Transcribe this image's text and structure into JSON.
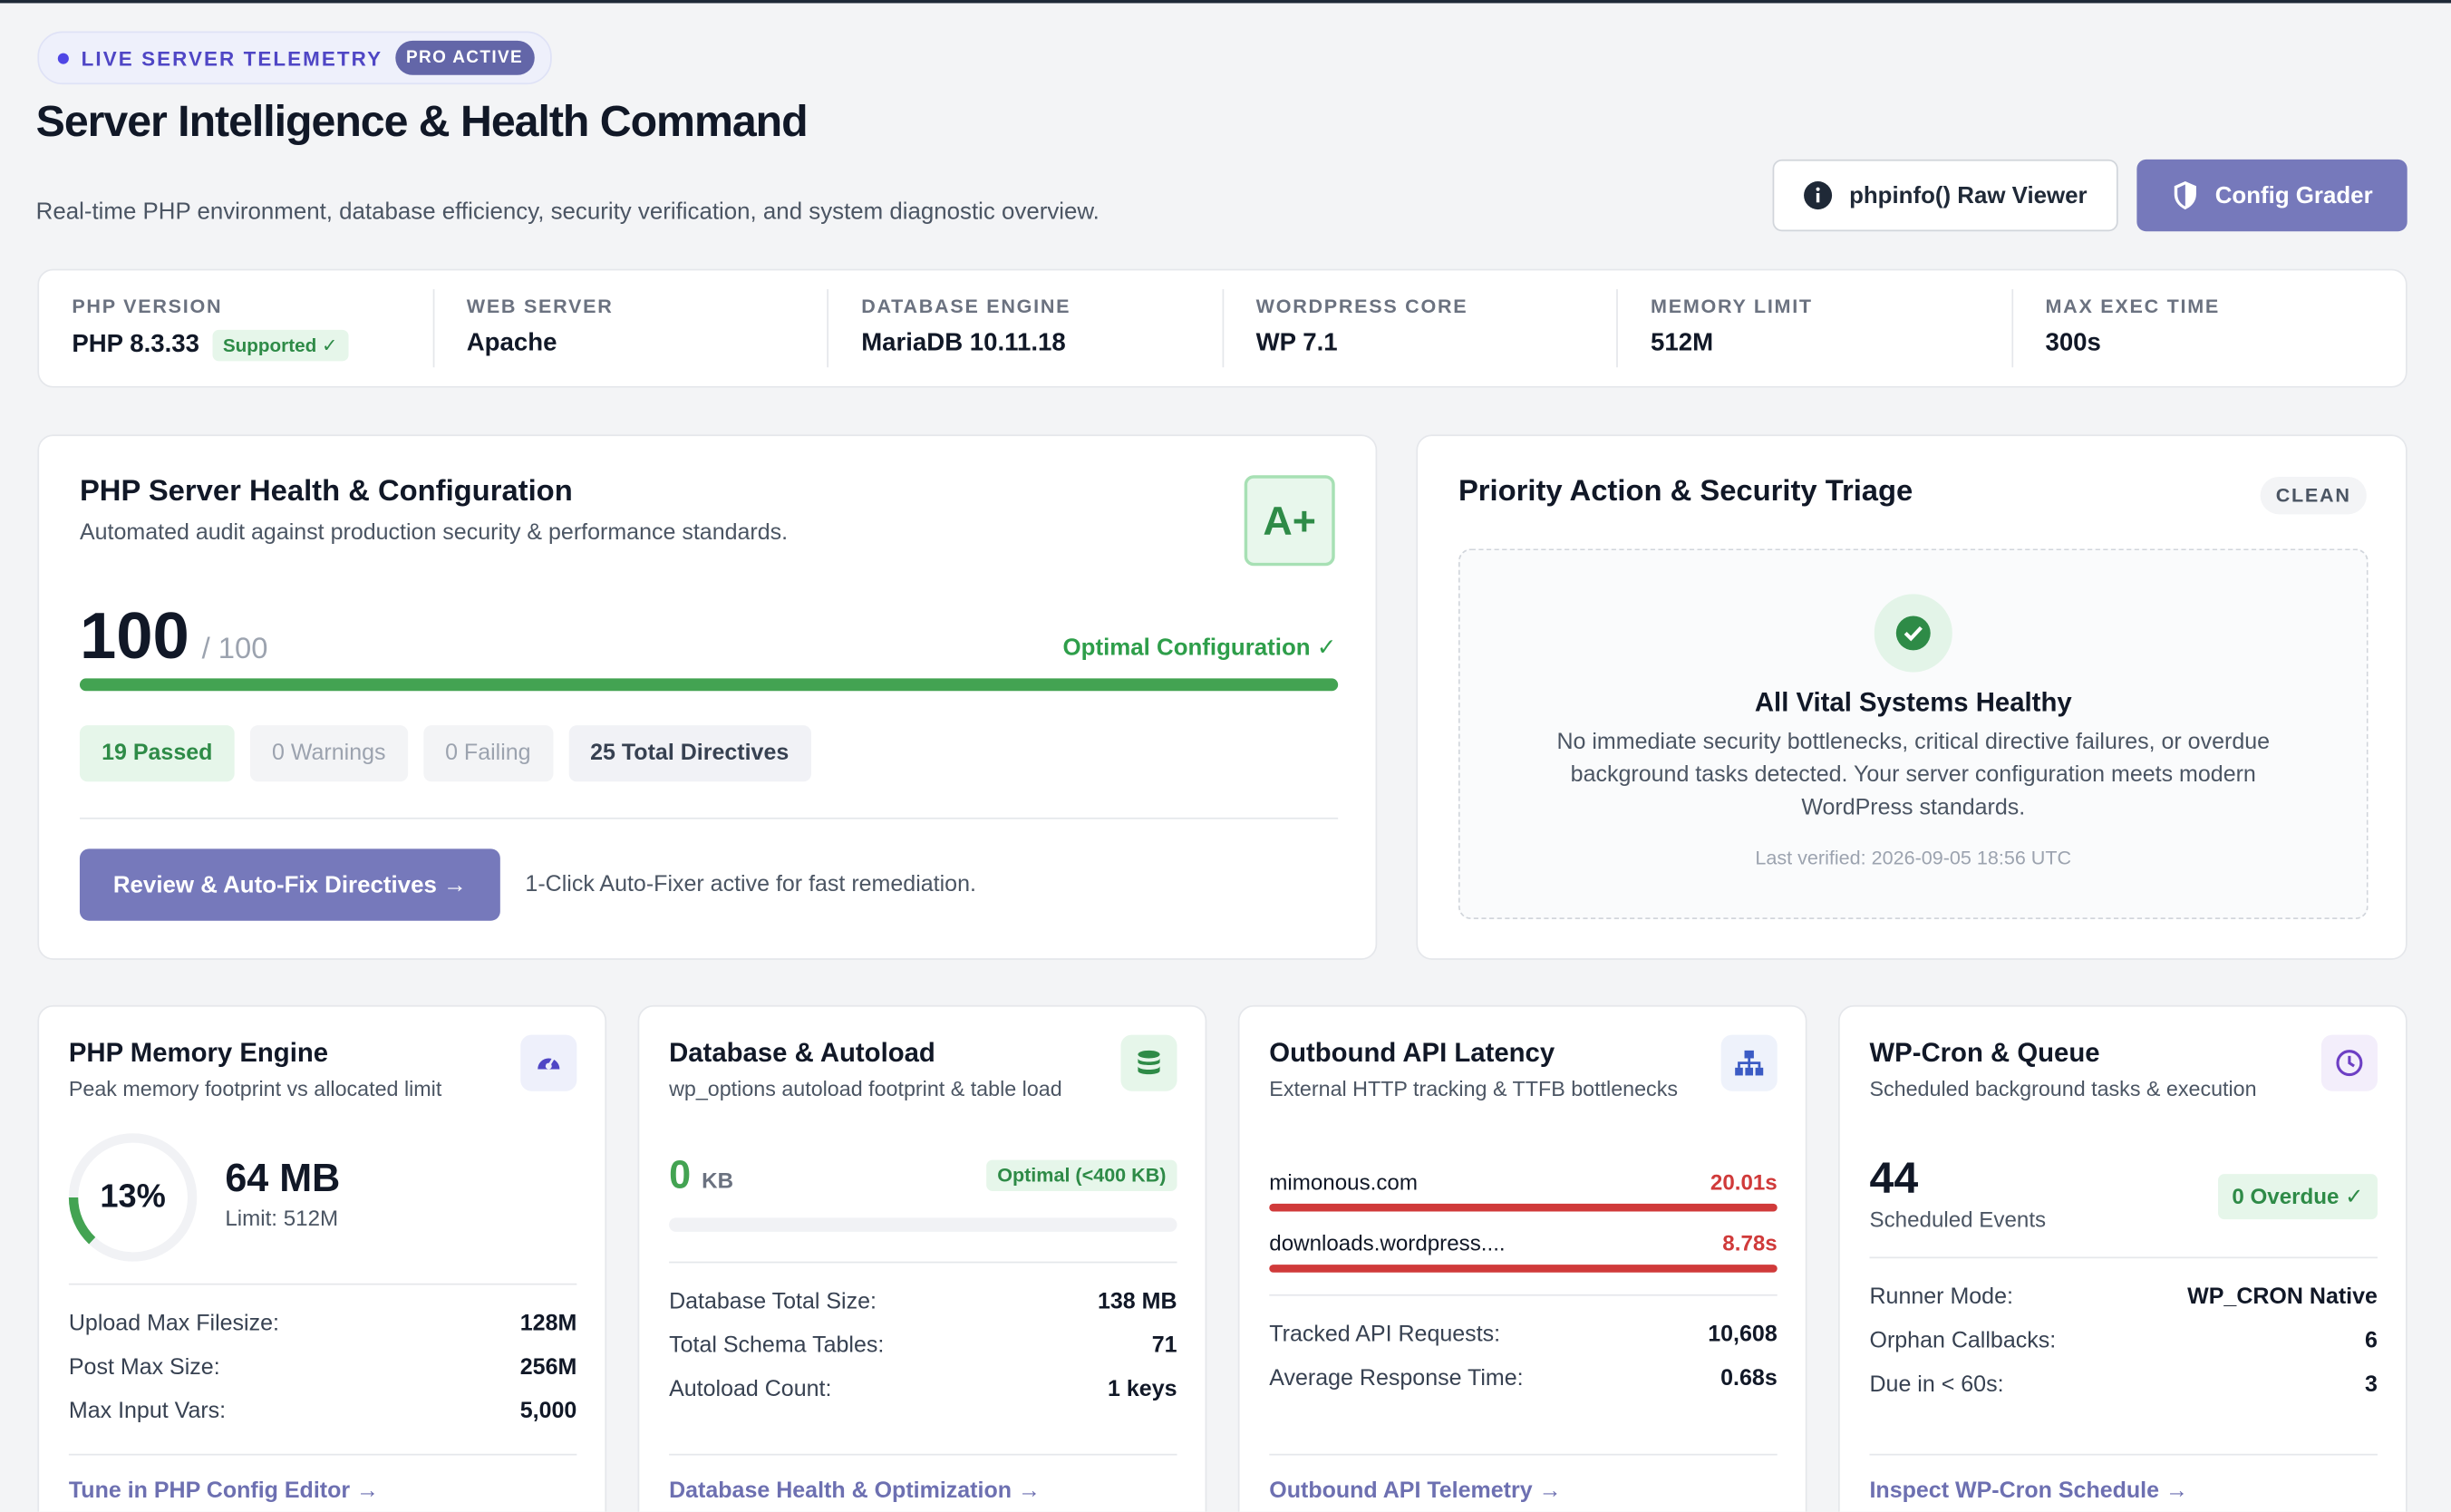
{
  "header": {
    "badge": "LIVE SERVER TELEMETRY",
    "badge_chip": "PRO ACTIVE",
    "title": "Server Intelligence & Health Command",
    "subtitle": "Real-time PHP environment, database efficiency, security verification, and system diagnostic overview.",
    "buttons": [
      "phpinfo() Raw Viewer",
      "Config Grader"
    ]
  },
  "stats": [
    {
      "label": "PHP VERSION",
      "value": "PHP 8.3.33",
      "tag": "Supported ✓"
    },
    {
      "label": "WEB SERVER",
      "value": "Apache"
    },
    {
      "label": "DATABASE ENGINE",
      "value": "MariaDB 10.11.18"
    },
    {
      "label": "WORDPRESS CORE",
      "value": "WP 7.1"
    },
    {
      "label": "MEMORY LIMIT",
      "value": "512M"
    },
    {
      "label": "MAX EXEC TIME",
      "value": "300s"
    }
  ],
  "health": {
    "title": "PHP Server Health & Configuration",
    "description": "Automated audit against production security & performance standards.",
    "grade": "A+",
    "score": "100",
    "score_total": "/ 100",
    "status": "Optimal Configuration ✓",
    "pills": [
      "19 Passed",
      "0 Warnings",
      "0 Failing",
      "25 Total Directives"
    ],
    "button": "Review & Auto-Fix Directives →",
    "note": "1-Click Auto-Fixer active for fast remediation."
  },
  "triage": {
    "title": "Priority Action & Security Triage",
    "chip": "CLEAN",
    "heading": "All Vital Systems Healthy",
    "text": "No immediate security bottlenecks, critical directive failures, or overdue background tasks detected. Your server configuration meets modern WordPress standards.",
    "verified": "Last verified: 2026-09-05 18:56 UTC"
  },
  "cards": [
    {
      "title": "PHP Memory Engine",
      "description": "Peak memory footprint vs allocated limit",
      "ring": "13%",
      "value": "64 MB",
      "limit": "Limit: 512M",
      "rows": [
        [
          "Upload Max Filesize:",
          "128M"
        ],
        [
          "Post Max Size:",
          "256M"
        ],
        [
          "Max Input Vars:",
          "5,000"
        ]
      ],
      "link": "Tune in PHP Config Editor →"
    },
    {
      "title": "Database & Autoload",
      "description": "wp_options autoload footprint & table load",
      "value": "0",
      "unit": "KB",
      "tag": "Optimal (<400 KB)",
      "rows": [
        [
          "Database Total Size:",
          "138 MB"
        ],
        [
          "Total Schema Tables:",
          "71"
        ],
        [
          "Autoload Count:",
          "1 keys"
        ]
      ],
      "link": "Database Health & Optimization →"
    },
    {
      "title": "Outbound API Latency",
      "description": "External HTTP tracking & TTFB bottlenecks",
      "hosts": [
        [
          "mimonous.com",
          "20.01s"
        ],
        [
          "downloads.wordpress....",
          "8.78s"
        ]
      ],
      "rows": [
        [
          "Tracked API Requests:",
          "10,608"
        ],
        [
          "Average Response Time:",
          "0.68s"
        ]
      ],
      "link": "Outbound API Telemetry →"
    },
    {
      "title": "WP-Cron & Queue",
      "description": "Scheduled background tasks & execution",
      "value": "44",
      "sublabel": "Scheduled Events",
      "tag": "0 Overdue ✓",
      "rows": [
        [
          "Runner Mode:",
          "WP_CRON Native"
        ],
        [
          "Orphan Callbacks:",
          "6"
        ],
        [
          "Due in < 60s:",
          "3"
        ]
      ],
      "link": "Inspect WP-Cron Schedule →"
    }
  ]
}
